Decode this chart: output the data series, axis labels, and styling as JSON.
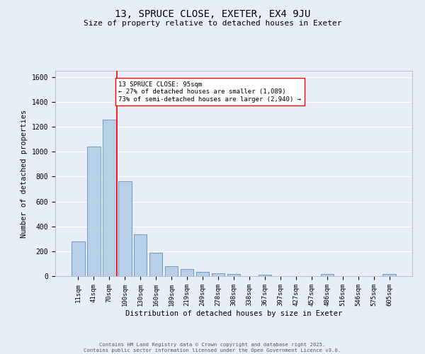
{
  "title_line1": "13, SPRUCE CLOSE, EXETER, EX4 9JU",
  "title_line2": "Size of property relative to detached houses in Exeter",
  "xlabel": "Distribution of detached houses by size in Exeter",
  "ylabel": "Number of detached properties",
  "bin_labels": [
    "11sqm",
    "41sqm",
    "70sqm",
    "100sqm",
    "130sqm",
    "160sqm",
    "189sqm",
    "219sqm",
    "249sqm",
    "278sqm",
    "308sqm",
    "338sqm",
    "367sqm",
    "397sqm",
    "427sqm",
    "457sqm",
    "486sqm",
    "516sqm",
    "546sqm",
    "575sqm",
    "605sqm"
  ],
  "bar_values": [
    280,
    1040,
    1260,
    760,
    335,
    190,
    80,
    55,
    35,
    20,
    15,
    0,
    10,
    0,
    0,
    0,
    15,
    0,
    0,
    0,
    15
  ],
  "bar_color": "#b8cfe8",
  "bar_edge_color": "#6090c0",
  "vline_color": "red",
  "annotation_text": "13 SPRUCE CLOSE: 95sqm\n← 27% of detached houses are smaller (1,089)\n73% of semi-detached houses are larger (2,940) →",
  "annotation_box_color": "white",
  "annotation_box_edge_color": "red",
  "ylim": [
    0,
    1650
  ],
  "yticks": [
    0,
    200,
    400,
    600,
    800,
    1000,
    1200,
    1400,
    1600
  ],
  "bg_color": "#e8eef8",
  "grid_color": "white",
  "footer_line1": "Contains HM Land Registry data © Crown copyright and database right 2025.",
  "footer_line2": "Contains public sector information licensed under the Open Government Licence v3.0."
}
